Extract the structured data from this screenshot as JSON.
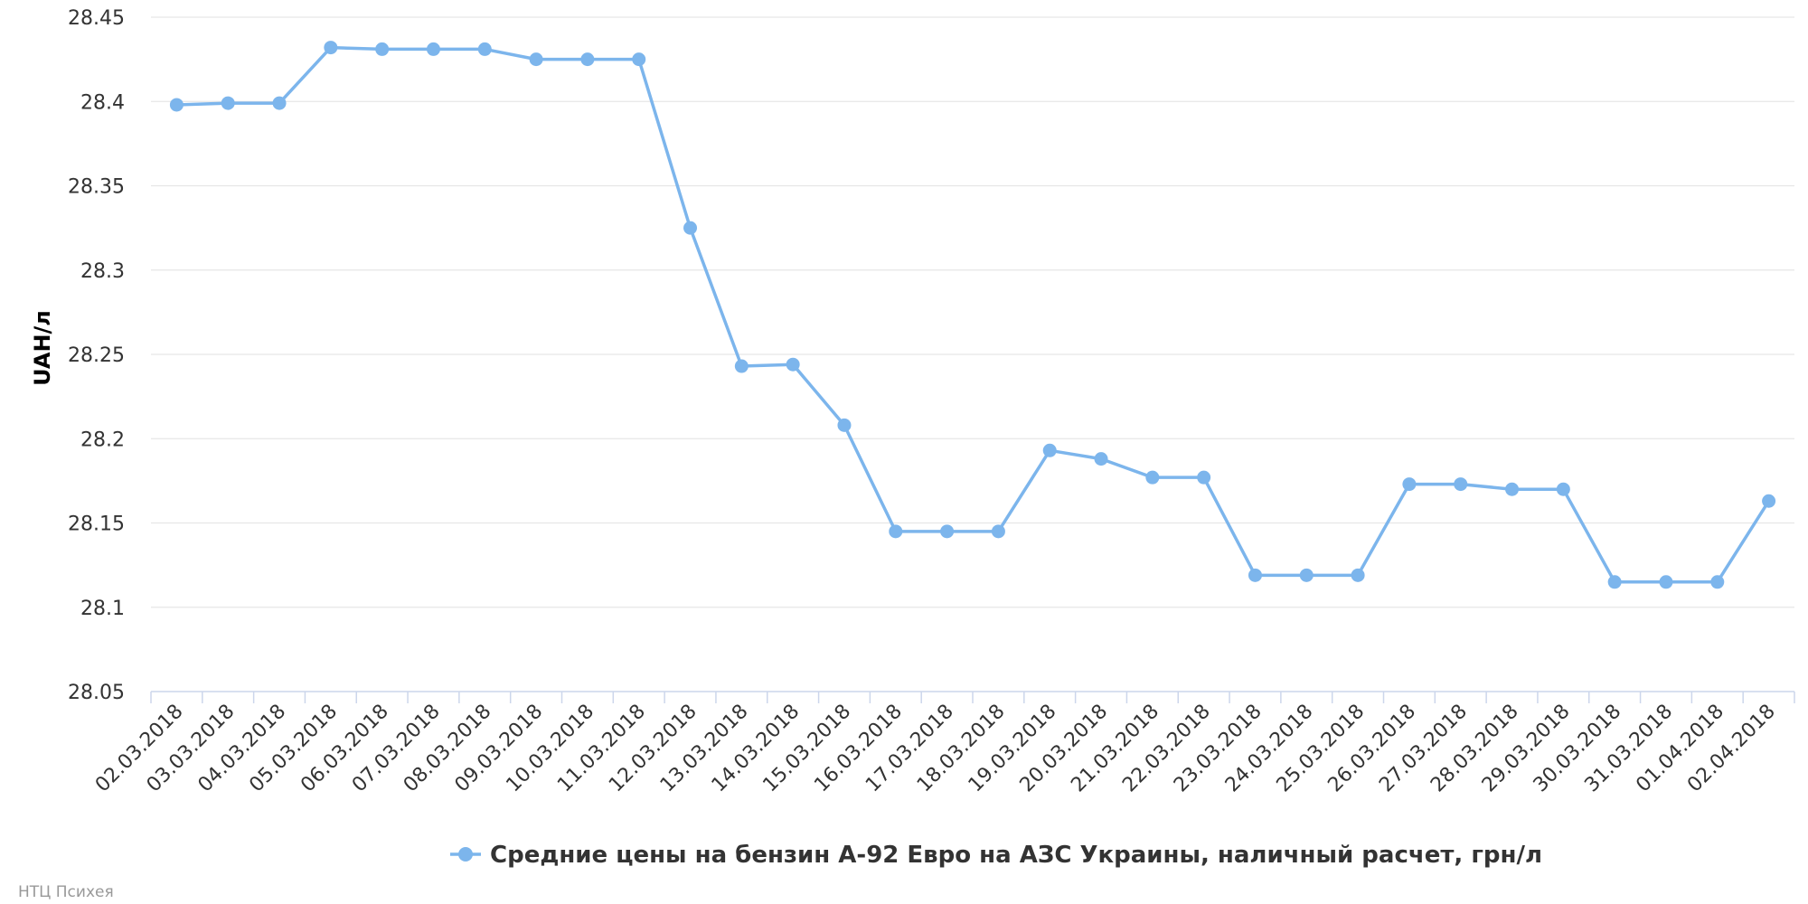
{
  "chart_data": {
    "type": "line",
    "title": "",
    "xlabel": "",
    "ylabel": "UAH/л",
    "ylim": [
      28.05,
      28.45
    ],
    "yticks": [
      "28.05",
      "28.1",
      "28.15",
      "28.2",
      "28.25",
      "28.3",
      "28.35",
      "28.4",
      "28.45"
    ],
    "grid": true,
    "legend_position": "bottom-center",
    "categories": [
      "02.03.2018",
      "03.03.2018",
      "04.03.2018",
      "05.03.2018",
      "06.03.2018",
      "07.03.2018",
      "08.03.2018",
      "09.03.2018",
      "10.03.2018",
      "11.03.2018",
      "12.03.2018",
      "13.03.2018",
      "14.03.2018",
      "15.03.2018",
      "16.03.2018",
      "17.03.2018",
      "18.03.2018",
      "19.03.2018",
      "20.03.2018",
      "21.03.2018",
      "22.03.2018",
      "23.03.2018",
      "24.03.2018",
      "25.03.2018",
      "26.03.2018",
      "27.03.2018",
      "28.03.2018",
      "29.03.2018",
      "30.03.2018",
      "31.03.2018",
      "01.04.2018",
      "02.04.2018"
    ],
    "series": [
      {
        "name": "Средние цены на бензин А-92 Евро на АЗС Украины, наличный расчет, грн/л",
        "color": "#7cb5ec",
        "values": [
          28.398,
          28.399,
          28.399,
          28.432,
          28.431,
          28.431,
          28.431,
          28.425,
          28.425,
          28.425,
          28.325,
          28.243,
          28.244,
          28.208,
          28.145,
          28.145,
          28.145,
          28.193,
          28.188,
          28.177,
          28.177,
          28.119,
          28.119,
          28.119,
          28.173,
          28.173,
          28.17,
          28.17,
          28.115,
          28.115,
          28.115,
          28.163
        ]
      }
    ]
  },
  "credit": "НТЦ Психея"
}
